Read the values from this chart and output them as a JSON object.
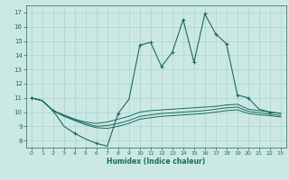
{
  "xlabel": "Humidex (Indice chaleur)",
  "xlim": [
    -0.5,
    23.5
  ],
  "ylim": [
    7.5,
    17.5
  ],
  "xticks": [
    0,
    1,
    2,
    3,
    4,
    5,
    6,
    7,
    8,
    9,
    10,
    11,
    12,
    13,
    14,
    15,
    16,
    17,
    18,
    19,
    20,
    21,
    22,
    23
  ],
  "yticks": [
    8,
    9,
    10,
    11,
    12,
    13,
    14,
    15,
    16,
    17
  ],
  "bg_color": "#cce8e4",
  "grid_color": "#aad4cf",
  "line_color": "#1a6b5e",
  "line1": [
    11.0,
    10.8,
    10.1,
    9.0,
    8.5,
    8.1,
    7.8,
    7.6,
    9.9,
    10.9,
    14.7,
    14.9,
    13.2,
    14.2,
    16.5,
    13.5,
    16.9,
    15.5,
    14.8,
    11.2,
    11.0,
    10.2,
    10.0,
    9.9
  ],
  "line2": [
    11.0,
    10.8,
    10.1,
    9.8,
    9.5,
    9.3,
    9.2,
    9.3,
    9.5,
    9.7,
    10.0,
    10.1,
    10.15,
    10.2,
    10.25,
    10.3,
    10.35,
    10.4,
    10.5,
    10.55,
    10.2,
    10.1,
    10.0,
    9.9
  ],
  "line3": [
    11.0,
    10.8,
    10.1,
    9.75,
    9.45,
    9.2,
    9.0,
    9.05,
    9.2,
    9.4,
    9.7,
    9.8,
    9.9,
    9.95,
    10.0,
    10.05,
    10.1,
    10.2,
    10.3,
    10.35,
    10.05,
    9.95,
    9.85,
    9.75
  ],
  "line4": [
    11.0,
    10.8,
    10.1,
    9.7,
    9.4,
    9.1,
    8.9,
    8.85,
    9.0,
    9.2,
    9.5,
    9.6,
    9.7,
    9.75,
    9.8,
    9.85,
    9.9,
    10.0,
    10.1,
    10.15,
    9.9,
    9.8,
    9.75,
    9.65
  ],
  "markers1": [
    0,
    2,
    4,
    6,
    8,
    10,
    11,
    12,
    13,
    14,
    15,
    16,
    17,
    18,
    19,
    20,
    22
  ],
  "figsize": [
    3.2,
    2.0
  ],
  "dpi": 100
}
